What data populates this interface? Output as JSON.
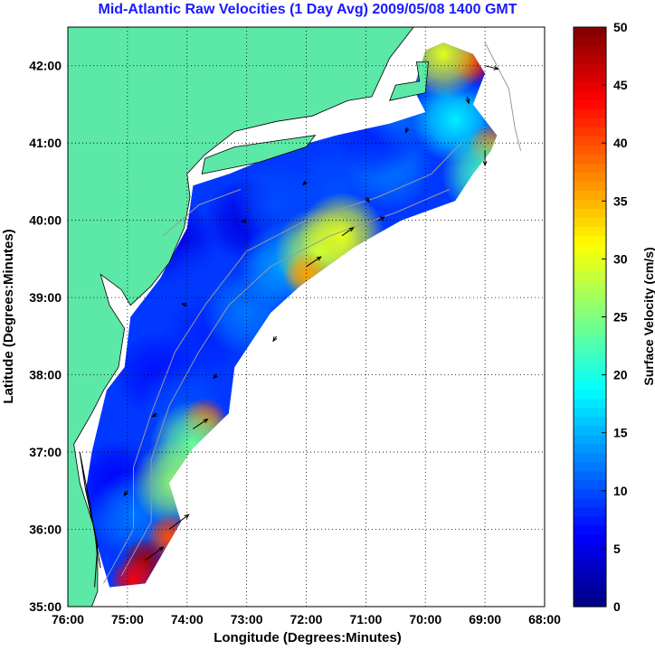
{
  "chart_data": {
    "type": "heatmap",
    "title": "Mid-Atlantic Raw Velocities (1 Day Avg) 2009/05/08 1400 GMT",
    "xlabel": "Longitude (Degrees:Minutes)",
    "ylabel": "Latitude (Degrees:Minutes)",
    "x_ticks": [
      "76:00",
      "75:00",
      "74:00",
      "73:00",
      "72:00",
      "71:00",
      "70:00",
      "69:00",
      "68:00"
    ],
    "y_ticks": [
      "35:00",
      "36:00",
      "37:00",
      "38:00",
      "39:00",
      "40:00",
      "41:00",
      "42:00"
    ],
    "xlim": [
      -76,
      -68
    ],
    "ylim": [
      35,
      42.5
    ],
    "grid": true,
    "colorbar": {
      "label": "Surface Velocity (cm/s)",
      "range": [
        0,
        50
      ],
      "ticks": [
        "0",
        "5",
        "10",
        "15",
        "20",
        "25",
        "30",
        "35",
        "40",
        "45",
        "50"
      ],
      "colormap": "jet"
    },
    "speed_regions": [
      {
        "lon": -73.0,
        "lat": 40.0,
        "speed": 5
      },
      {
        "lon": -74.2,
        "lat": 39.7,
        "speed": 5
      },
      {
        "lon": -73.8,
        "lat": 39.2,
        "speed": 9
      },
      {
        "lon": -72.5,
        "lat": 40.2,
        "speed": 10
      },
      {
        "lon": -71.5,
        "lat": 40.4,
        "speed": 10
      },
      {
        "lon": -70.6,
        "lat": 40.7,
        "speed": 12
      },
      {
        "lon": -70.8,
        "lat": 41.1,
        "speed": 8
      },
      {
        "lon": -70.4,
        "lat": 41.5,
        "speed": 12
      },
      {
        "lon": -69.9,
        "lat": 41.7,
        "speed": 9
      },
      {
        "lon": -69.5,
        "lat": 41.3,
        "speed": 18
      },
      {
        "lon": -69.3,
        "lat": 42.1,
        "speed": 8
      },
      {
        "lon": -73.7,
        "lat": 38.5,
        "speed": 8
      },
      {
        "lon": -74.5,
        "lat": 38.0,
        "speed": 7
      },
      {
        "lon": -74.1,
        "lat": 37.6,
        "speed": 10
      },
      {
        "lon": -74.8,
        "lat": 37.0,
        "speed": 9
      },
      {
        "lon": -75.2,
        "lat": 36.6,
        "speed": 6
      },
      {
        "lon": -74.9,
        "lat": 36.2,
        "speed": 12
      },
      {
        "lon": -73.0,
        "lat": 38.8,
        "speed": 12
      },
      {
        "lon": -72.4,
        "lat": 39.4,
        "speed": 14
      },
      {
        "lon": -71.8,
        "lat": 39.6,
        "speed": 28
      },
      {
        "lon": -71.4,
        "lat": 39.8,
        "speed": 30
      },
      {
        "lon": -72.0,
        "lat": 39.3,
        "speed": 36
      },
      {
        "lon": -73.7,
        "lat": 37.4,
        "speed": 40
      },
      {
        "lon": -73.9,
        "lat": 37.1,
        "speed": 24
      },
      {
        "lon": -74.2,
        "lat": 36.6,
        "speed": 26
      },
      {
        "lon": -74.3,
        "lat": 35.9,
        "speed": 40
      },
      {
        "lon": -74.7,
        "lat": 35.6,
        "speed": 48
      },
      {
        "lon": -74.9,
        "lat": 35.35,
        "speed": 44
      },
      {
        "lon": -69.2,
        "lat": 42.05,
        "speed": 45
      },
      {
        "lon": -68.9,
        "lat": 40.95,
        "speed": 38
      },
      {
        "lon": -69.0,
        "lat": 40.6,
        "speed": 22
      },
      {
        "lon": -69.7,
        "lat": 42.15,
        "speed": 30
      }
    ],
    "vectors": [
      {
        "lon": -73.0,
        "lat": 40.0,
        "u": -0.3,
        "v": -0.1
      },
      {
        "lon": -72.0,
        "lat": 40.5,
        "u": -0.2,
        "v": -0.2
      },
      {
        "lon": -71.0,
        "lat": 40.3,
        "u": 0.2,
        "v": -0.3
      },
      {
        "lon": -70.3,
        "lat": 41.2,
        "u": -0.1,
        "v": -0.3
      },
      {
        "lon": -69.3,
        "lat": 41.6,
        "u": 0.1,
        "v": -0.4
      },
      {
        "lon": -74.0,
        "lat": 38.9,
        "u": -0.3,
        "v": 0.1
      },
      {
        "lon": -73.5,
        "lat": 38.0,
        "u": -0.2,
        "v": -0.2
      },
      {
        "lon": -74.5,
        "lat": 37.5,
        "u": -0.3,
        "v": -0.2
      },
      {
        "lon": -73.9,
        "lat": 37.3,
        "u": 0.9,
        "v": 0.6
      },
      {
        "lon": -74.3,
        "lat": 36.0,
        "u": 1.2,
        "v": 0.9
      },
      {
        "lon": -74.7,
        "lat": 35.6,
        "u": 1.1,
        "v": 0.8
      },
      {
        "lon": -72.0,
        "lat": 39.4,
        "u": 0.9,
        "v": 0.6
      },
      {
        "lon": -71.4,
        "lat": 39.8,
        "u": 0.7,
        "v": 0.5
      },
      {
        "lon": -69.0,
        "lat": 42.0,
        "u": 0.8,
        "v": -0.2
      },
      {
        "lon": -69.0,
        "lat": 40.9,
        "u": 0.0,
        "v": -0.9
      },
      {
        "lon": -75.0,
        "lat": 36.5,
        "u": -0.2,
        "v": -0.3
      },
      {
        "lon": -72.5,
        "lat": 38.5,
        "u": -0.2,
        "v": -0.3
      },
      {
        "lon": -70.8,
        "lat": 40.0,
        "u": 0.4,
        "v": 0.2
      }
    ]
  },
  "colors": {
    "land": "#5ce8a6",
    "plot_background": "#ffffff",
    "title": "#1a1aff",
    "grid": "#000000",
    "contours": "#999999"
  }
}
